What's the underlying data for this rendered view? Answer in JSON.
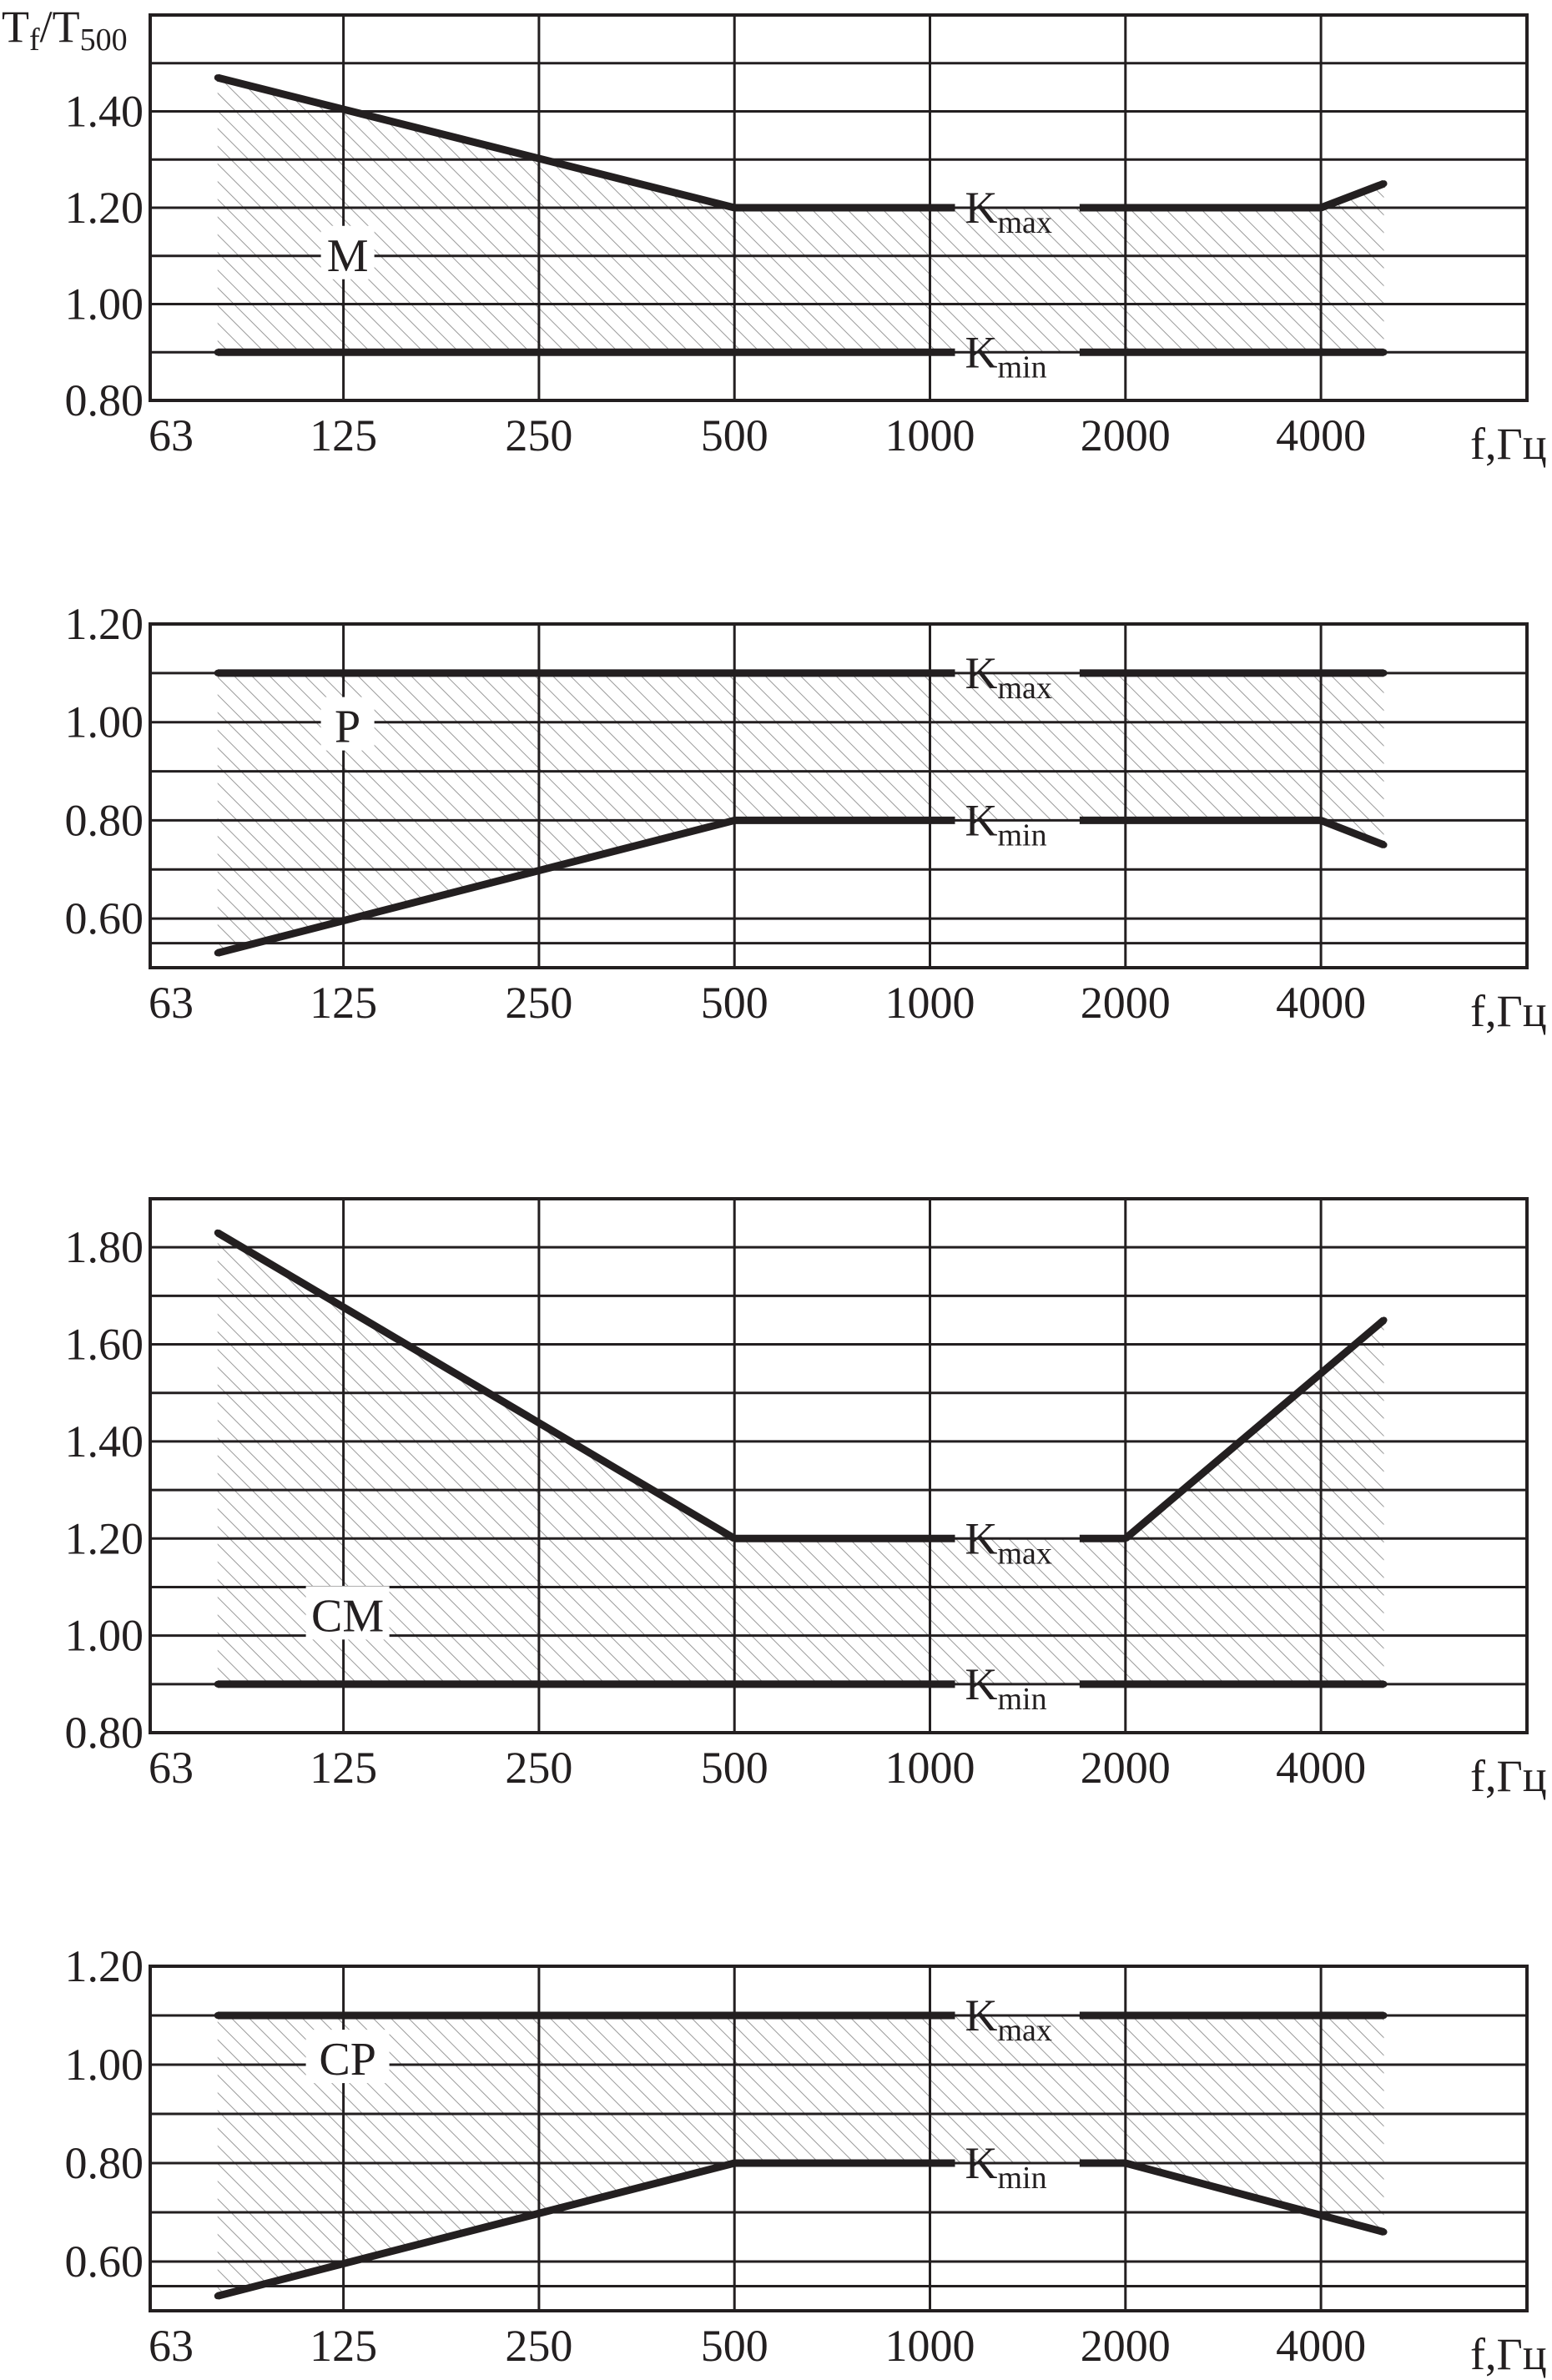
{
  "figure": {
    "y_axis_title": "Tf/T500",
    "y_axis_title_main": "T",
    "y_axis_title_sub_f": "f",
    "y_axis_title_slash": "/T",
    "y_axis_title_sub_500": "500",
    "x_axis_title": "f,Гц",
    "kmax_label_main": "K",
    "kmax_label_sub": "max",
    "kmin_label_main": "K",
    "kmin_label_sub": "min"
  },
  "chart_data": [
    {
      "type": "line",
      "panel_label": "M",
      "x_scale": "log2 (octave bands)",
      "x_tick_labels": [
        "63",
        "125",
        "250",
        "500",
        "1000",
        "2000",
        "4000"
      ],
      "y_tick_labels": [
        "0.80",
        "1.00",
        "1.20",
        "1.40"
      ],
      "ylim": [
        0.8,
        1.6
      ],
      "grid": true,
      "shaded_region": "between Kmin and Kmax",
      "series": [
        {
          "name": "Kmax",
          "x": [
            80,
            500,
            4000,
            5000
          ],
          "y": [
            1.47,
            1.2,
            1.2,
            1.25
          ]
        },
        {
          "name": "Kmin",
          "x": [
            80,
            5000
          ],
          "y": [
            0.9,
            0.9
          ]
        }
      ]
    },
    {
      "type": "line",
      "panel_label": "P",
      "x_scale": "log2 (octave bands)",
      "x_tick_labels": [
        "63",
        "125",
        "250",
        "500",
        "1000",
        "2000",
        "4000"
      ],
      "y_tick_labels": [
        "0.60",
        "0.80",
        "1.00",
        "1.20"
      ],
      "ylim": [
        0.5,
        1.2
      ],
      "grid": true,
      "shaded_region": "between Kmin and Kmax",
      "series": [
        {
          "name": "Kmax",
          "x": [
            80,
            5000
          ],
          "y": [
            1.1,
            1.1
          ]
        },
        {
          "name": "Kmin",
          "x": [
            80,
            500,
            4000,
            5000
          ],
          "y": [
            0.53,
            0.8,
            0.8,
            0.75
          ]
        }
      ]
    },
    {
      "type": "line",
      "panel_label": "CM",
      "x_scale": "log2 (octave bands)",
      "x_tick_labels": [
        "63",
        "125",
        "250",
        "500",
        "1000",
        "2000",
        "4000"
      ],
      "y_tick_labels": [
        "0.80",
        "1.00",
        "1.20",
        "1.40",
        "1.60",
        "1.80"
      ],
      "ylim": [
        0.8,
        1.9
      ],
      "grid": true,
      "shaded_region": "between Kmin and Kmax",
      "series": [
        {
          "name": "Kmax",
          "x": [
            80,
            500,
            2000,
            5000
          ],
          "y": [
            1.83,
            1.2,
            1.2,
            1.65
          ]
        },
        {
          "name": "Kmin",
          "x": [
            80,
            5000
          ],
          "y": [
            0.9,
            0.9
          ]
        }
      ]
    },
    {
      "type": "line",
      "panel_label": "CP",
      "x_scale": "log2 (octave bands)",
      "x_tick_labels": [
        "63",
        "125",
        "250",
        "500",
        "1000",
        "2000",
        "4000"
      ],
      "y_tick_labels": [
        "0.60",
        "0.80",
        "1.00",
        "1.20"
      ],
      "ylim": [
        0.5,
        1.2
      ],
      "grid": true,
      "shaded_region": "between Kmin and Kmax",
      "series": [
        {
          "name": "Kmax",
          "x": [
            80,
            5000
          ],
          "y": [
            1.1,
            1.1
          ]
        },
        {
          "name": "Kmin",
          "x": [
            80,
            500,
            2000,
            5000
          ],
          "y": [
            0.53,
            0.8,
            0.8,
            0.66
          ]
        }
      ]
    }
  ]
}
